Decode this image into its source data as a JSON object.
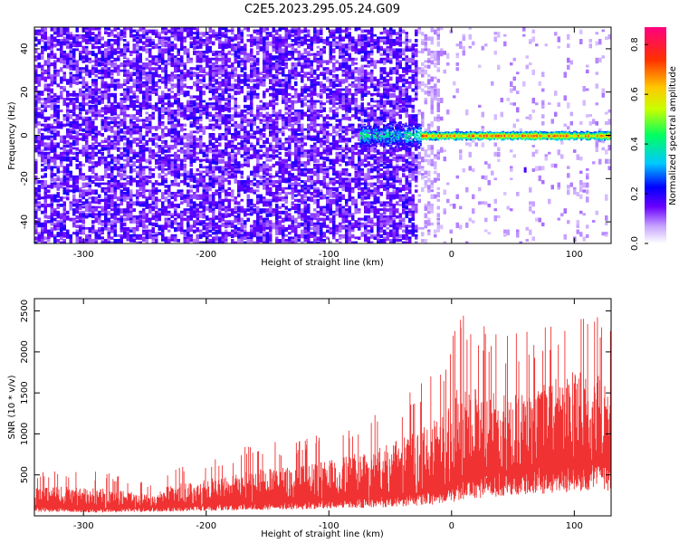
{
  "title": "C2E5.2023.295.05.24.G09",
  "chart_data": [
    {
      "type": "heatmap",
      "xlabel": "Height of straight line (km)",
      "ylabel": "Frequency (Hz)",
      "xlim": [
        -340,
        130
      ],
      "ylim": [
        -50,
        50
      ],
      "xticks": [
        -300,
        -200,
        -100,
        0,
        100
      ],
      "yticks": [
        -40,
        -20,
        0,
        20,
        40
      ],
      "xtick_labels": [
        "-300",
        "-200",
        "-100",
        "0",
        "100"
      ],
      "ytick_labels": [
        "-40",
        "-20",
        "0",
        "20",
        "40"
      ],
      "colorbar": {
        "label": "Normalized spectral amplitude",
        "range": [
          0,
          0.87
        ],
        "ticks": [
          0,
          0.2,
          0.4,
          0.6,
          0.8
        ],
        "tick_labels": [
          "0.0",
          "0.2",
          "0.4",
          "0.6",
          "0.8"
        ],
        "colors": [
          "#ffffff",
          "#c7a3ff",
          "#6a00ff",
          "#0000ff",
          "#00c8ff",
          "#00ff60",
          "#c8ff00",
          "#ffc800",
          "#ff3000",
          "#ff0080"
        ]
      },
      "features": {
        "noise_extent_km": [
          -340,
          -20
        ],
        "signal_band_freq_hz": 0,
        "signal_start_km": -75,
        "peak_amplitude": 0.85,
        "faint_spot": {
          "x": 60,
          "y": -16
        }
      }
    },
    {
      "type": "area",
      "xlabel": "Height of straight line (km)",
      "ylabel": "SNR (10 * v/v)",
      "xlim": [
        -340,
        130
      ],
      "ylim": [
        0,
        2650
      ],
      "xticks": [
        -300,
        -200,
        -100,
        0,
        100
      ],
      "yticks": [
        500,
        1000,
        1500,
        2000,
        2500
      ],
      "xtick_labels": [
        "-300",
        "-200",
        "-100",
        "0",
        "100"
      ],
      "ytick_labels": [
        "500",
        "1000",
        "1500",
        "2000",
        "2500"
      ],
      "color": "#f03232",
      "envelope": {
        "x": [
          -340,
          -300,
          -280,
          -240,
          -235,
          -200,
          -160,
          -120,
          -100,
          -60,
          -30,
          -10,
          0,
          10,
          40,
          70,
          100,
          130
        ],
        "low": [
          120,
          100,
          100,
          120,
          130,
          150,
          170,
          200,
          220,
          250,
          300,
          360,
          400,
          500,
          580,
          650,
          720,
          760
        ],
        "high": [
          560,
          560,
          520,
          370,
          540,
          700,
          880,
          950,
          1050,
          1300,
          1600,
          1900,
          2300,
          2650,
          2200,
          2300,
          2650,
          2500
        ]
      }
    }
  ]
}
